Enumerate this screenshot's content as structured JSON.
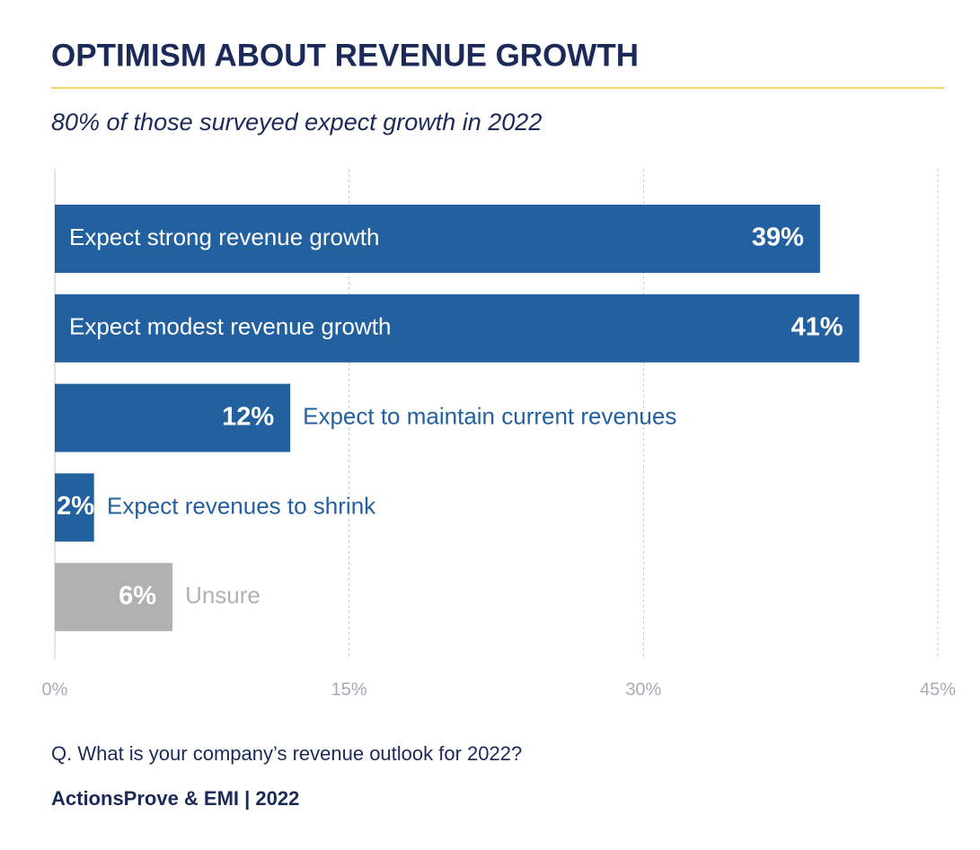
{
  "chart_data": {
    "type": "bar",
    "orientation": "horizontal",
    "title": "OPTIMISM ABOUT REVENUE GROWTH",
    "subtitle": "80% of those surveyed expect growth in 2022",
    "categories": [
      "Expect strong revenue growth",
      "Expect modest revenue growth",
      "Expect to maintain current revenues",
      "Expect revenues to shrink",
      "Unsure"
    ],
    "values": [
      39,
      41,
      12,
      2,
      6
    ],
    "value_labels": [
      "39%",
      "41%",
      "12%",
      "2%",
      "6%"
    ],
    "colors": [
      "#2360a0",
      "#2360a0",
      "#2360a0",
      "#2360a0",
      "#b1b1b1"
    ],
    "xlim": [
      0,
      45
    ],
    "xticks": [
      {
        "value": 0,
        "label": "0%"
      },
      {
        "value": 15,
        "label": "15%"
      },
      {
        "value": 30,
        "label": "30%"
      },
      {
        "value": 45,
        "label": "45%"
      }
    ],
    "grid": true,
    "note": "Q. What is your company’s revenue outlook for 2022?",
    "source": "ActionsProve & EMI  |  2022"
  }
}
